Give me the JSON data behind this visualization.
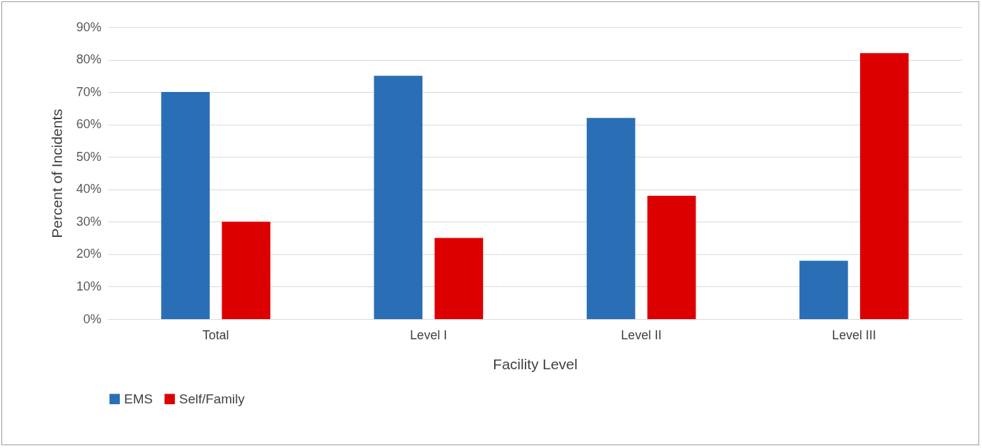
{
  "chart_data": {
    "type": "bar",
    "xlabel": "Facility Level",
    "ylabel": "Percent of Incidents",
    "categories": [
      "Total",
      "Level I",
      "Level II",
      "Level III"
    ],
    "series": [
      {
        "name": "EMS",
        "color": "#2a6fb5",
        "values": [
          70,
          75,
          62,
          18
        ]
      },
      {
        "name": "Self/Family",
        "color": "#dd0000",
        "values": [
          30,
          25,
          38,
          82
        ]
      }
    ],
    "ylim": [
      0,
      90
    ],
    "yticks": [
      {
        "value": 0,
        "label": "0%"
      },
      {
        "value": 10,
        "label": "10%"
      },
      {
        "value": 20,
        "label": "20%"
      },
      {
        "value": 30,
        "label": "30%"
      },
      {
        "value": 40,
        "label": "40%"
      },
      {
        "value": 50,
        "label": "50%"
      },
      {
        "value": 60,
        "label": "60%"
      },
      {
        "value": 70,
        "label": "70%"
      },
      {
        "value": 80,
        "label": "80%"
      },
      {
        "value": 90,
        "label": "90%"
      }
    ],
    "grid": "y",
    "legend": "bottom"
  }
}
